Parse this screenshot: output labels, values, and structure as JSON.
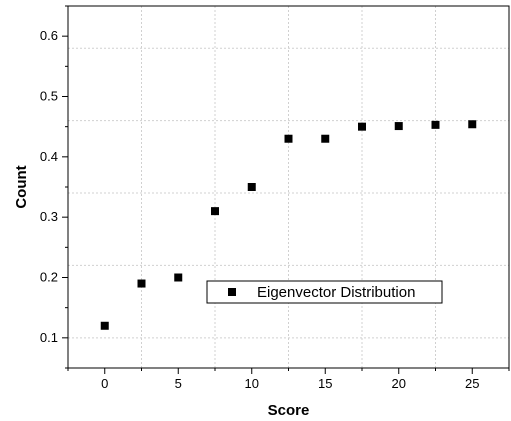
{
  "chart_data": {
    "type": "scatter",
    "xlabel": "Score",
    "ylabel": "Count",
    "xlim": [
      -2.5,
      27.5
    ],
    "ylim": [
      0.05,
      0.65
    ],
    "x_ticks": [
      0,
      5,
      10,
      15,
      20,
      25
    ],
    "y_ticks": [
      0.1,
      0.2,
      0.3,
      0.4,
      0.5,
      0.6
    ],
    "x_tick_labels": [
      "0",
      "5",
      "10",
      "15",
      "20",
      "25"
    ],
    "y_tick_labels": [
      "0.1",
      "0.2",
      "0.3",
      "0.4",
      "0.5",
      "0.6"
    ],
    "grid": true,
    "legend_position": "center-right",
    "marker": "square",
    "marker_color": "#000000",
    "series": [
      {
        "name": "Eigenvector Distribution",
        "x": [
          0,
          2.5,
          5,
          7.5,
          10,
          12.5,
          15,
          17.5,
          20,
          22.5,
          25
        ],
        "y": [
          0.12,
          0.19,
          0.2,
          0.31,
          0.35,
          0.43,
          0.43,
          0.45,
          0.451,
          0.453,
          0.454
        ]
      }
    ]
  }
}
